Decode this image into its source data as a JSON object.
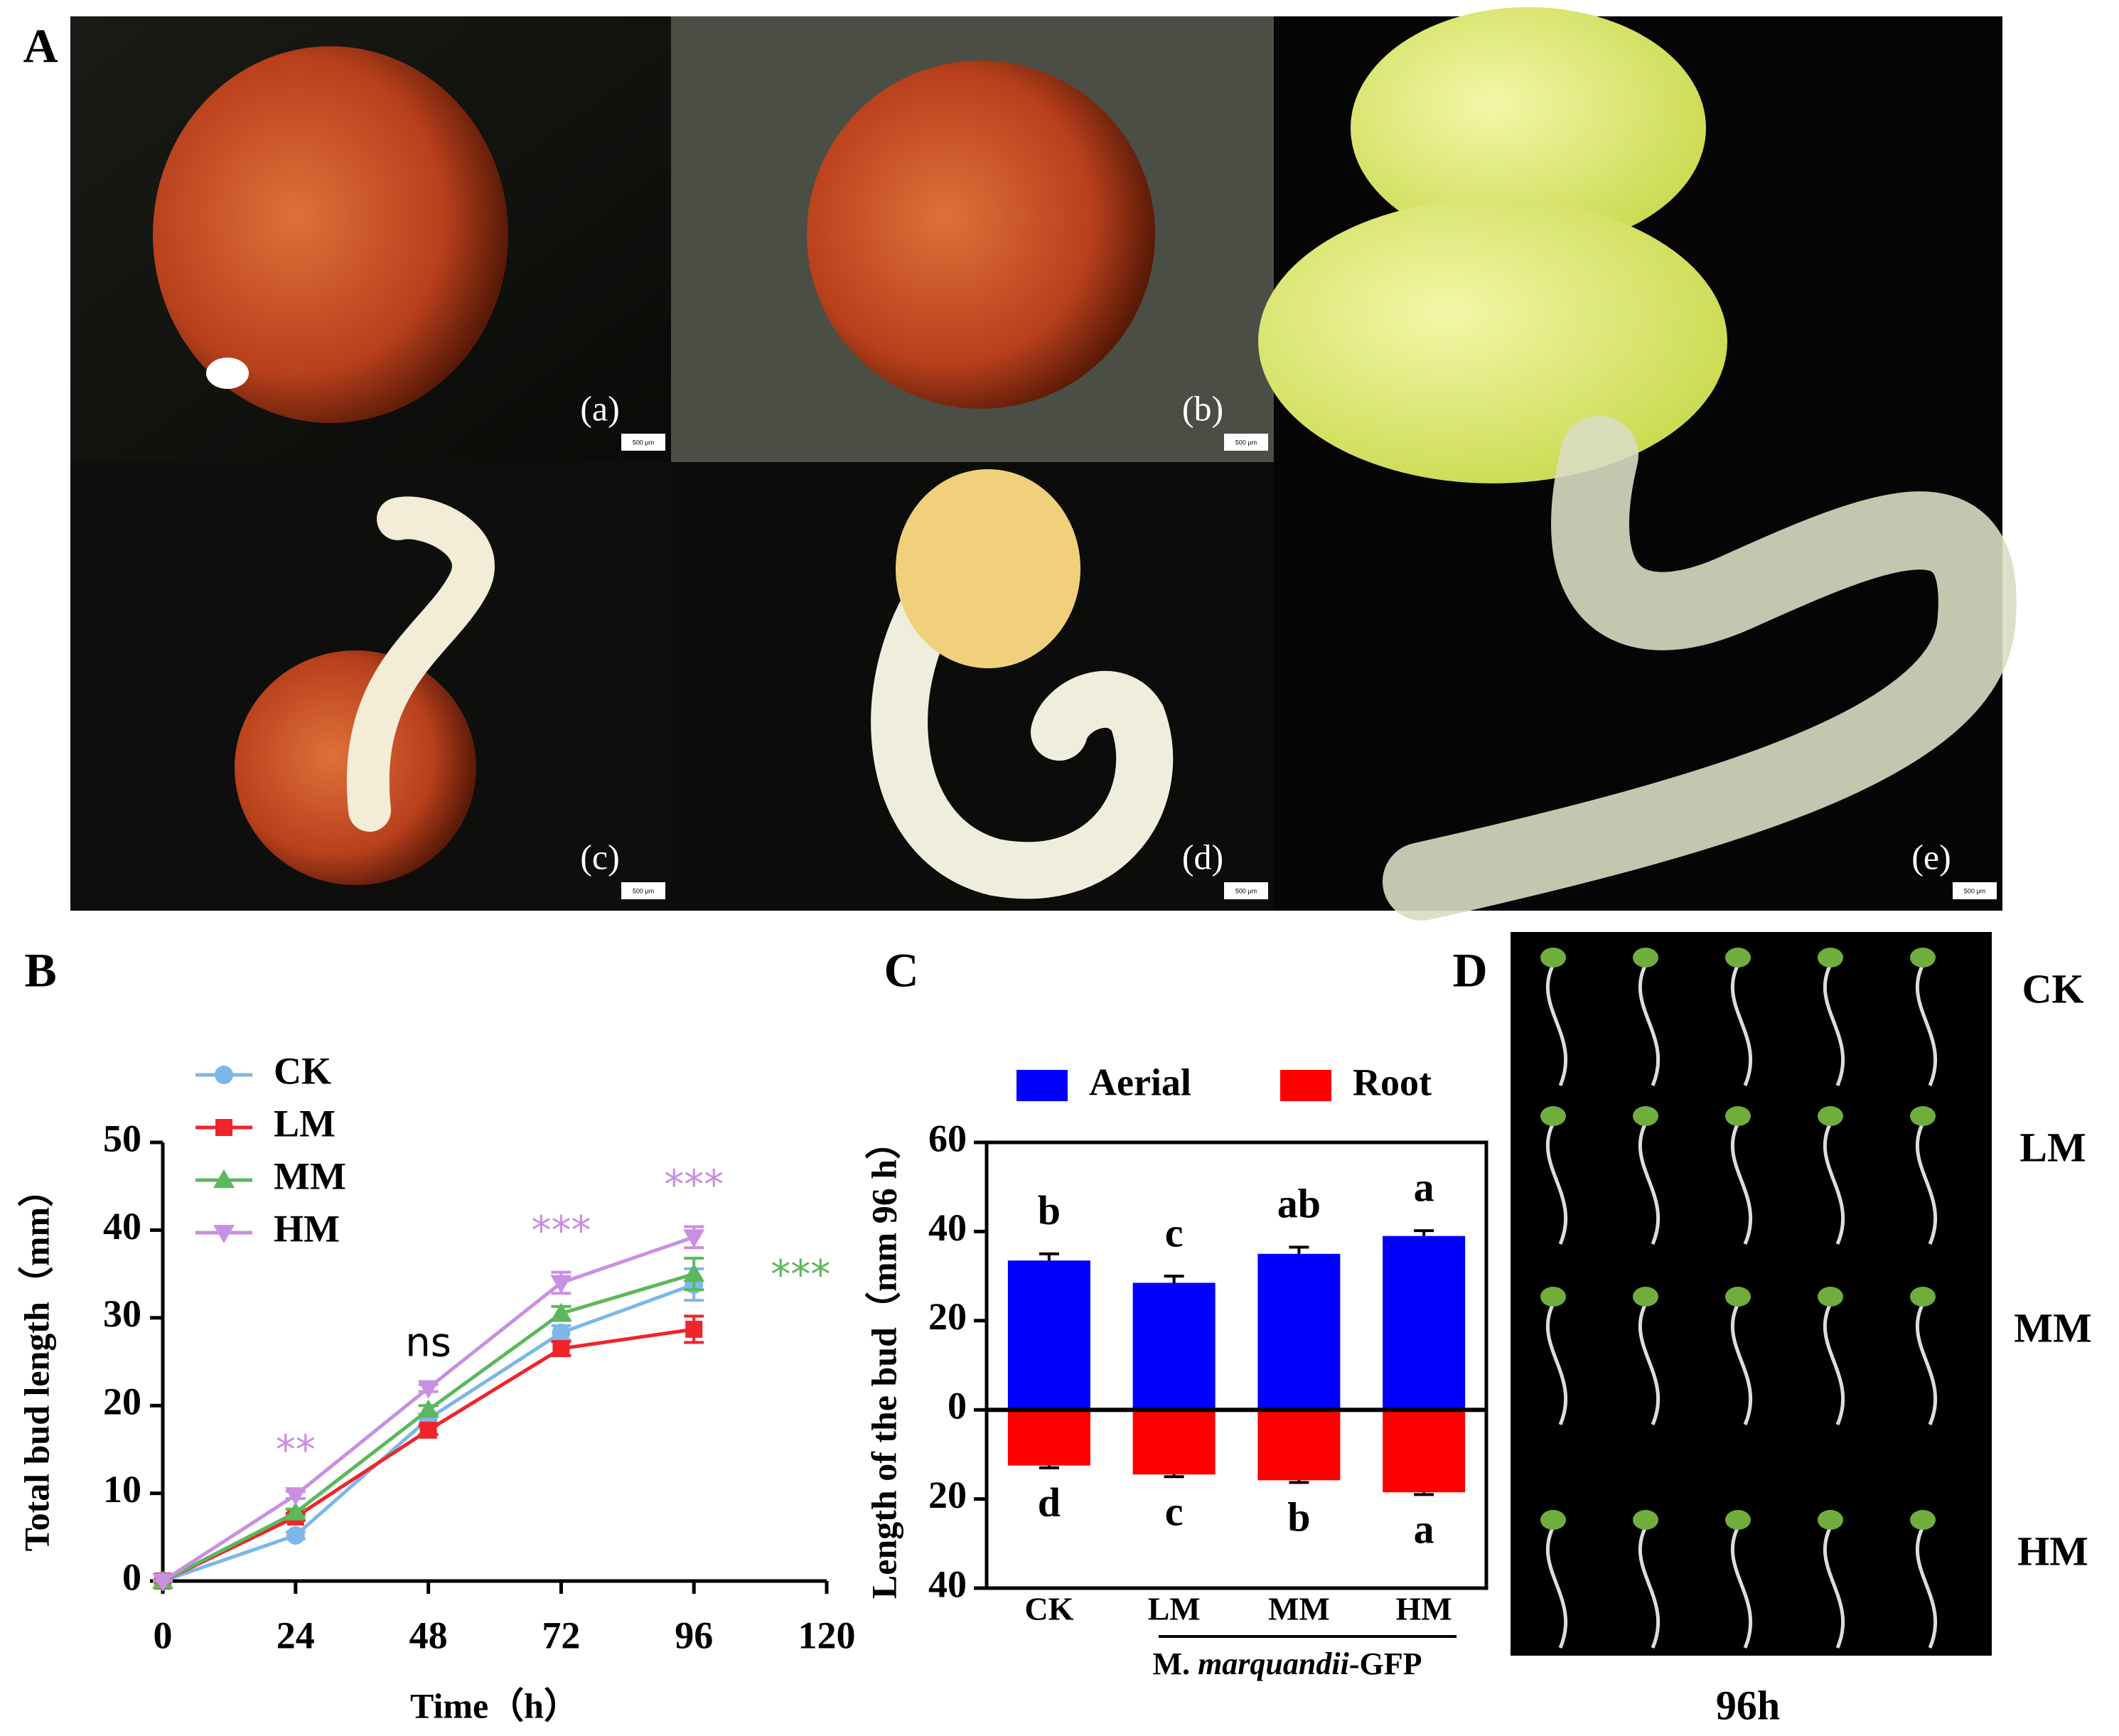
{
  "panel_labels": [
    "A",
    "B",
    "C",
    "D"
  ],
  "photo_labels": [
    "(a)",
    "(b)",
    "(c)",
    "(d)",
    "(e)"
  ],
  "scale_bar": "500 μm",
  "chart_data": [
    {
      "type": "line",
      "x_label": "Time（h）",
      "y_label": "Total bud length（mm）",
      "x": [
        0,
        24,
        48,
        72,
        96
      ],
      "xlim": [
        0,
        120
      ],
      "xticks": [
        0,
        24,
        48,
        72,
        96,
        120
      ],
      "ylim": [
        0,
        50
      ],
      "yticks": [
        0,
        10,
        20,
        30,
        40,
        50
      ],
      "series": [
        {
          "name": "CK",
          "color": "#7cb7ea",
          "marker": "circle",
          "values": [
            0,
            5.2,
            18.5,
            28.3,
            33.8
          ],
          "errors": [
            0,
            0.4,
            0.5,
            0.8,
            1.8
          ]
        },
        {
          "name": "LM",
          "color": "#f0242a",
          "marker": "square",
          "values": [
            0,
            7.3,
            17.2,
            26.5,
            28.7
          ],
          "errors": [
            0,
            0.4,
            0.5,
            0.8,
            1.5
          ]
        },
        {
          "name": "MM",
          "color": "#5cb85c",
          "marker": "triangle",
          "values": [
            0,
            7.8,
            19.5,
            30.5,
            35
          ],
          "errors": [
            0,
            0.4,
            0.5,
            0.8,
            1.8
          ]
        },
        {
          "name": "HM",
          "color": "#c98fe2",
          "marker": "triangle-down",
          "values": [
            0,
            9.8,
            22,
            34,
            39.2
          ],
          "errors": [
            0,
            0.4,
            0.4,
            1.2,
            1.2
          ]
        }
      ],
      "annotations": [
        {
          "text": "**",
          "color": "#c98fe2"
        },
        {
          "text": "ns",
          "color": "#000000"
        },
        {
          "text": "***",
          "color": "#c98fe2"
        },
        {
          "text": "***",
          "color": "#c98fe2"
        },
        {
          "text": "***",
          "color": "#5cb85c"
        }
      ]
    },
    {
      "type": "bar",
      "y_label": "Length of  the bud（mm 96 h）",
      "x_sublabel": [
        "M. ",
        "marquandii",
        "-GFP"
      ],
      "categories": [
        "CK",
        "LM",
        "MM",
        "HM"
      ],
      "ylim": [
        -40,
        60
      ],
      "yticks": [
        {
          "value": -40,
          "label": "40"
        },
        {
          "value": -20,
          "label": "20"
        },
        0,
        20,
        40,
        60
      ],
      "series": [
        {
          "name": "Aerial",
          "color": "#0000ff",
          "values": [
            33.5,
            28.5,
            35,
            39
          ],
          "errors": [
            1.5,
            1.5,
            1.5,
            1.2
          ],
          "letters": [
            "b",
            "c",
            "ab",
            "a"
          ]
        },
        {
          "name": "Root",
          "color": "#ff0000",
          "values": [
            -12.5,
            -14.5,
            -15.8,
            -18.5
          ],
          "errors": [
            0.5,
            0.5,
            0.5,
            0.5
          ],
          "letters": [
            "d",
            "c",
            "b",
            "a"
          ]
        }
      ]
    }
  ],
  "panel_d": {
    "row_labels": [
      "CK",
      "LM",
      "MM",
      "HM"
    ],
    "caption": "96h"
  }
}
